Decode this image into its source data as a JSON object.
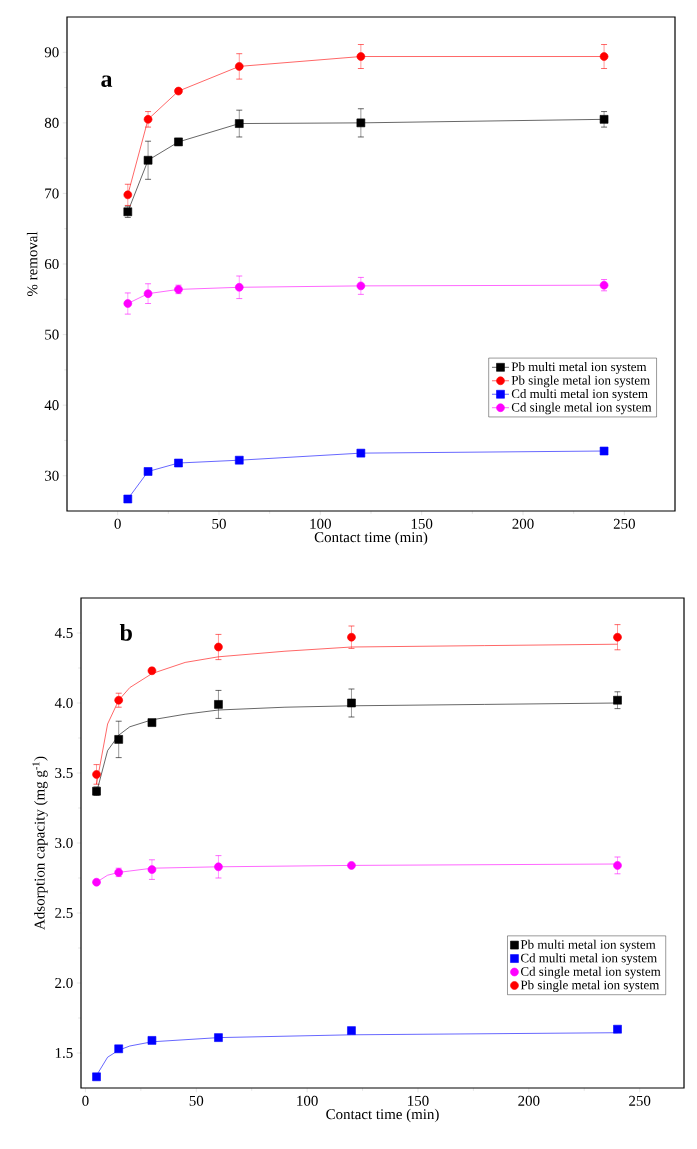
{
  "chart_data": [
    {
      "type": "line",
      "xlabel": "Contact time (min)",
      "ylabel": "% removal",
      "annotations": [
        "a"
      ],
      "x": [
        5,
        15,
        30,
        60,
        120,
        240
      ],
      "xlim": [
        -25,
        275
      ],
      "ylim": [
        25,
        95
      ],
      "xticks": [
        0,
        50,
        100,
        150,
        200,
        250
      ],
      "yticks": [
        30,
        40,
        50,
        60,
        70,
        80,
        90
      ],
      "grid": false,
      "legend": "bottom right",
      "line_style": "solid",
      "series": [
        {
          "name": "Pb multi metal ion system",
          "color": "#000000",
          "marker": "square",
          "values": [
            67.4,
            74.7,
            77.3,
            79.9,
            80.0,
            80.5
          ],
          "errors": [
            0.8,
            2.7,
            0.5,
            1.9,
            2.0,
            1.1
          ]
        },
        {
          "name": "Pb single metal ion system",
          "color": "#ff0000",
          "marker": "circle",
          "values": [
            69.8,
            80.5,
            84.5,
            88.0,
            89.4,
            89.4
          ],
          "errors": [
            1.5,
            1.1,
            0.3,
            1.8,
            1.7,
            1.7
          ]
        },
        {
          "name": "Cd multi metal ion system",
          "color": "#0000ff",
          "marker": "square",
          "values": [
            26.7,
            30.6,
            31.8,
            32.2,
            33.2,
            33.5
          ]
        },
        {
          "name": "Cd single metal ion system",
          "color": "#ff00ff",
          "marker": "circle",
          "values": [
            54.4,
            55.8,
            56.4,
            56.7,
            56.9,
            57.0
          ],
          "errors": [
            1.5,
            1.4,
            0.6,
            1.6,
            1.2,
            0.8
          ]
        }
      ]
    },
    {
      "type": "scatter",
      "xlabel": "Contact time (min)",
      "ylabel": "Adsorption capacity (mg g$^{-1}$)",
      "annotations": [
        "b"
      ],
      "x": [
        5,
        15,
        30,
        60,
        120,
        240
      ],
      "xlim": [
        -2,
        270
      ],
      "ylim": [
        1.25,
        4.75
      ],
      "xticks": [
        0,
        50,
        100,
        150,
        200,
        250
      ],
      "yticks": [
        1.5,
        {
          "value": 2,
          "label": "2.0"
        },
        2.5,
        {
          "value": 3,
          "label": "3.0"
        },
        3.5,
        {
          "value": 4,
          "label": "4.0"
        },
        4.5
      ],
      "grid": false,
      "legend": "bottom right",
      "series": [
        {
          "name": "Pb multi metal ion system",
          "color": "#000000",
          "marker": "square",
          "values": [
            3.37,
            3.74,
            3.86,
            3.99,
            4.0,
            4.02
          ],
          "errors": [
            0.03,
            0.13,
            0.02,
            0.1,
            0.1,
            0.06
          ]
        },
        {
          "name": "Cd multi metal ion system",
          "color": "#0000ff",
          "marker": "square",
          "values": [
            1.33,
            1.53,
            1.59,
            1.61,
            1.66,
            1.67
          ]
        },
        {
          "name": "Cd single metal ion system",
          "color": "#ff00ff",
          "marker": "circle",
          "values": [
            2.72,
            2.79,
            2.81,
            2.83,
            2.84,
            2.84
          ],
          "errors": [
            null,
            0.03,
            0.07,
            0.08,
            null,
            0.06
          ]
        },
        {
          "name": "Pb single metal ion system",
          "color": "#ff0000",
          "marker": "circle",
          "values": [
            3.49,
            4.02,
            4.23,
            4.4,
            4.47,
            4.47
          ],
          "errors": [
            0.07,
            0.05,
            0.02,
            0.09,
            0.08,
            0.09
          ]
        },
        {
          "type": "line",
          "color": "#000000",
          "marker": "none",
          "x": [
            5,
            10,
            15,
            20,
            30,
            45,
            60,
            90,
            120,
            180,
            240
          ],
          "values": [
            3.36,
            3.66,
            3.77,
            3.83,
            3.88,
            3.92,
            3.95,
            3.97,
            3.98,
            3.99,
            4.0
          ]
        },
        {
          "type": "line",
          "color": "#0000ff",
          "marker": "none",
          "x": [
            5,
            10,
            15,
            20,
            30,
            60,
            120,
            240
          ],
          "values": [
            1.34,
            1.47,
            1.52,
            1.55,
            1.58,
            1.61,
            1.63,
            1.645
          ]
        },
        {
          "type": "line",
          "color": "#ff00ff",
          "marker": "none",
          "x": [
            5,
            10,
            15,
            20,
            30,
            60,
            120,
            240
          ],
          "values": [
            2.72,
            2.77,
            2.79,
            2.8,
            2.82,
            2.83,
            2.84,
            2.85
          ]
        },
        {
          "type": "line",
          "color": "#ff0000",
          "marker": "none",
          "x": [
            5,
            10,
            15,
            20,
            30,
            45,
            60,
            90,
            120,
            180,
            240
          ],
          "values": [
            3.42,
            3.85,
            4.02,
            4.11,
            4.21,
            4.29,
            4.33,
            4.37,
            4.4,
            4.41,
            4.42
          ]
        }
      ]
    }
  ]
}
